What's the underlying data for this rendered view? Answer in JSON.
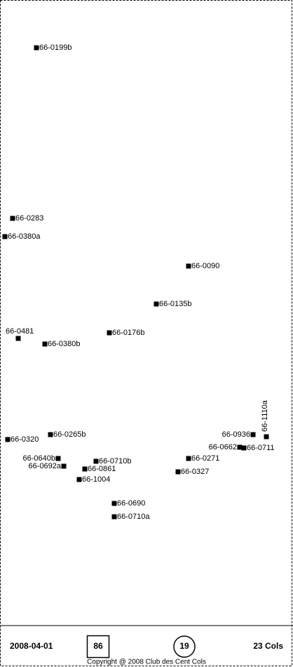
{
  "points": [
    {
      "label": "66-0199b"
    },
    {
      "label": "66-0283"
    },
    {
      "label": "66-0380a"
    },
    {
      "label": "66-0090"
    },
    {
      "label": "66-0135b"
    },
    {
      "label": "66-0176b"
    },
    {
      "label": "66-0481"
    },
    {
      "label": "66-0380b"
    },
    {
      "label": "66-1110a"
    },
    {
      "label": "66-0936"
    },
    {
      "label": "66-0265b"
    },
    {
      "label": "66-0320"
    },
    {
      "label": "66-0662"
    },
    {
      "label": "66-0711"
    },
    {
      "label": "66-0640b"
    },
    {
      "label": "66-0271"
    },
    {
      "label": "66-0710b"
    },
    {
      "label": "66-0692a"
    },
    {
      "label": "66-0861"
    },
    {
      "label": "66-0327"
    },
    {
      "label": "66-1004"
    },
    {
      "label": "66-0690"
    },
    {
      "label": "66-0710a"
    }
  ],
  "footer": {
    "date": "2008-04-01",
    "box_count": 86,
    "circle_count": 19,
    "cols": "23 Cols",
    "copyright": "Copyright @ 2008 Club des Cent Cols"
  }
}
